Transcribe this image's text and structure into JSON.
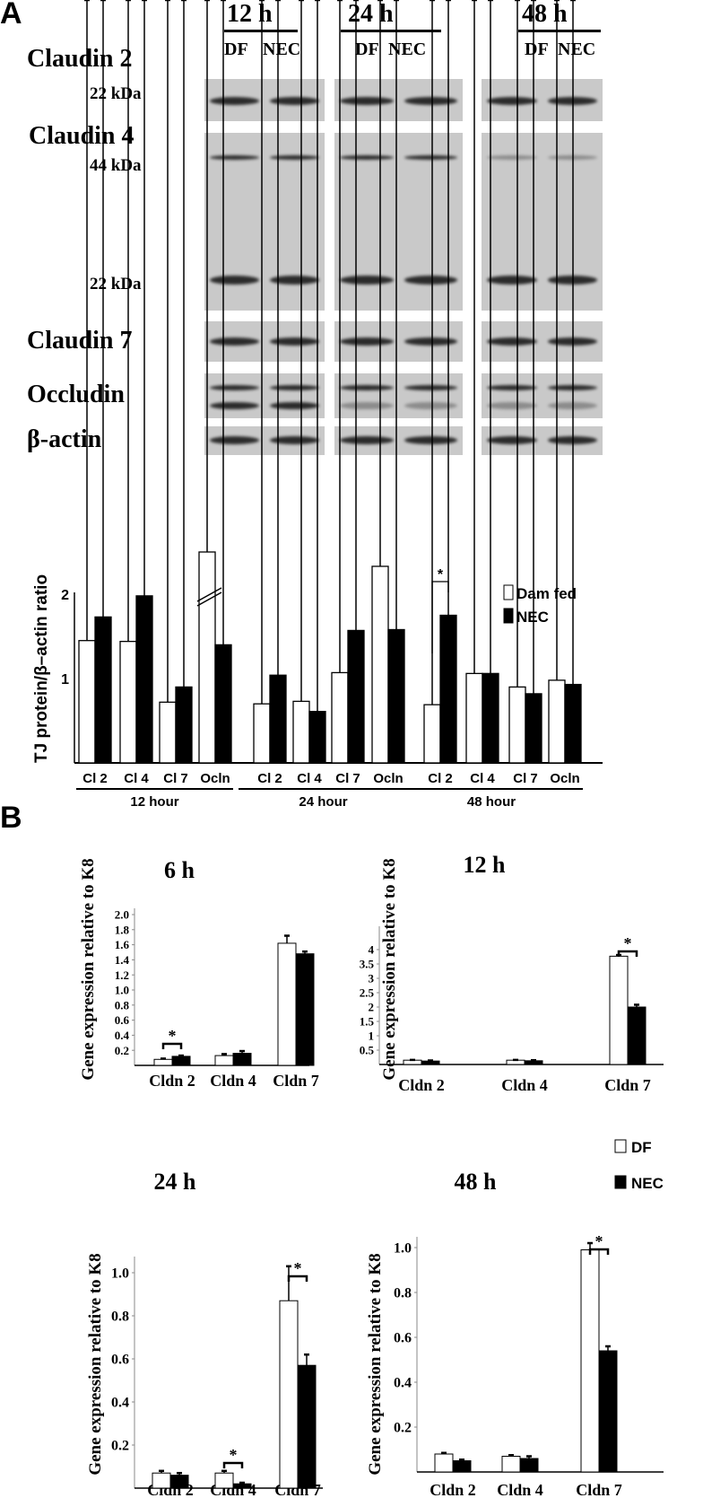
{
  "panel_a": {
    "label": "A",
    "times": [
      "12 h",
      "24 h",
      "48 h"
    ],
    "lane_labels": [
      "DF",
      "NEC"
    ],
    "rows": [
      "Claudin 2",
      "Claudin 4",
      "Claudin 7",
      "Occludin",
      "β-actin"
    ],
    "kda": [
      "22 kDa",
      "44 kDa",
      "22 kDa"
    ]
  },
  "panel_b": {
    "label": "B"
  },
  "chart_data": [
    {
      "type": "bar",
      "ylabel": "TJ protein/β–actin ratio",
      "yticks": [
        "1",
        "2"
      ],
      "categories": [
        "Cl 2",
        "Cl 4",
        "Cl 7",
        "Ocln",
        "Cl 2",
        "Cl 4",
        "Cl 7",
        "Ocln",
        "Cl 2",
        "Cl 4",
        "Cl 7",
        "Ocln"
      ],
      "groups": [
        "12 hour",
        "24 hour",
        "48 hour"
      ],
      "legend": [
        "Dam fed",
        "NEC"
      ],
      "legend_placement": "top-right",
      "axis_break": "12 hour Ocln",
      "series": [
        {
          "name": "Dam fed",
          "fill": "#ffffff",
          "values": [
            1.45,
            1.44,
            0.72,
            2.5,
            0.7,
            0.73,
            1.07,
            2.33,
            0.69,
            1.06,
            0.9,
            0.98
          ],
          "err": [
            0.07,
            0.17,
            0.08,
            1.3,
            0.08,
            0.16,
            0.08,
            0.28,
            0.05,
            0.2,
            0.13,
            0.22
          ]
        },
        {
          "name": "NEC",
          "fill": "#000000",
          "values": [
            1.73,
            1.98,
            0.9,
            1.4,
            1.04,
            0.61,
            1.57,
            1.58,
            1.75,
            1.06,
            0.82,
            0.93
          ],
          "err": [
            0.13,
            0.18,
            0.15,
            0.55,
            0.28,
            0.06,
            0.43,
            0.43,
            0.34,
            0.27,
            0.07,
            0.1
          ]
        }
      ],
      "annotation": "*"
    },
    {
      "type": "bar",
      "title": "6 h",
      "ylabel": "Gene expression relative to K8",
      "categories": [
        "Cldn 2",
        "Cldn 4",
        "Cldn 7"
      ],
      "ylim": [
        0,
        2.0
      ],
      "yticks": [
        "0.2",
        "0.4",
        "0.6",
        "0.8",
        "1.0",
        "1.2",
        "1.4",
        "1.6",
        "1.8",
        "2.0"
      ],
      "series": [
        {
          "name": "DF",
          "values": [
            0.08,
            0.13,
            1.62
          ],
          "err": [
            0.01,
            0.02,
            0.1
          ]
        },
        {
          "name": "NEC",
          "values": [
            0.12,
            0.16,
            1.48
          ],
          "err": [
            0.01,
            0.03,
            0.03
          ]
        }
      ],
      "annotation": "*"
    },
    {
      "type": "bar",
      "title": "12 h",
      "ylabel": "Gene expression relative to K8",
      "categories": [
        "Cldn 2",
        "Cldn 4",
        "Cldn 7"
      ],
      "ylim": [
        0,
        4.5
      ],
      "yticks": [
        "0.5",
        "1",
        "1.5",
        "2",
        "2.5",
        "3",
        "3.5",
        "4"
      ],
      "series": [
        {
          "name": "DF",
          "values": [
            0.15,
            0.15,
            3.77
          ],
          "err": [
            0.01,
            0.01,
            0.04
          ]
        },
        {
          "name": "NEC",
          "values": [
            0.12,
            0.13,
            2.0
          ],
          "err": [
            0.02,
            0.02,
            0.08
          ]
        }
      ],
      "annotation": "*"
    },
    {
      "type": "bar",
      "title": "24 h",
      "ylabel": "Gene expression relative to K8",
      "categories": [
        "Cldn 2",
        "Cldn 4",
        "Cldn 7"
      ],
      "ylim": [
        0,
        1.2
      ],
      "yticks": [
        "0.2",
        "0.4",
        "0.6",
        "0.8",
        "1.0"
      ],
      "series": [
        {
          "name": "DF",
          "values": [
            0.07,
            0.07,
            0.87
          ],
          "err": [
            0.01,
            0.01,
            0.16
          ]
        },
        {
          "name": "NEC",
          "values": [
            0.06,
            0.02,
            0.57
          ],
          "err": [
            0.01,
            0.005,
            0.05
          ]
        }
      ],
      "annotation": "*"
    },
    {
      "type": "bar",
      "title": "48 h",
      "ylabel": "Gene expression relative to K8",
      "categories": [
        "Cldn 2",
        "Cldn 4",
        "Cldn 7"
      ],
      "ylim": [
        0,
        1.2
      ],
      "yticks": [
        "0.2",
        "0.4",
        "0.6",
        "0.8",
        "1.0"
      ],
      "series": [
        {
          "name": "DF",
          "values": [
            0.08,
            0.07,
            0.99
          ],
          "err": [
            0.005,
            0.005,
            0.03
          ]
        },
        {
          "name": "NEC",
          "values": [
            0.05,
            0.06,
            0.54
          ],
          "err": [
            0.005,
            0.01,
            0.02
          ]
        }
      ],
      "annotation": "*"
    }
  ],
  "legend_b": [
    "DF",
    "NEC"
  ]
}
